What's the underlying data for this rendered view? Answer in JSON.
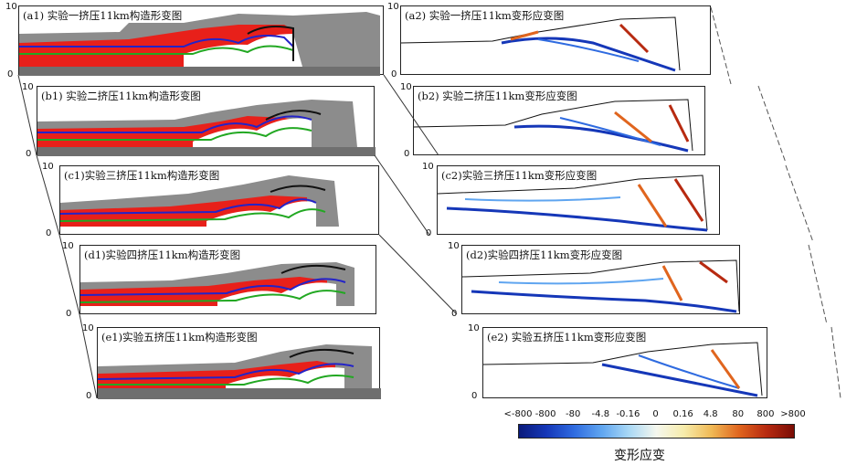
{
  "panels_left": [
    {
      "label": "(a1) 实验一挤压11km构造形变图"
    },
    {
      "label": "(b1) 实验二挤压11km构造形变图"
    },
    {
      "label": "(c1)实验三挤压11km构造形变图"
    },
    {
      "label": "(d1)实验四挤压11km构造形变图"
    },
    {
      "label": "(e1)实验五挤压11km构造形变图"
    }
  ],
  "panels_right": [
    {
      "label": "(a2) 实验一挤压11km变形应变图"
    },
    {
      "label": "(b2) 实验二挤压11km变形应变图"
    },
    {
      "label": "(c2)实验三挤压11km变形应变图"
    },
    {
      "label": "(d2)实验四挤压11km变形应变图"
    },
    {
      "label": "(e2) 实验五挤压11km变形应变图"
    }
  ],
  "axis": {
    "top": "10",
    "bottom": "0"
  },
  "colorbar": {
    "title": "变形应变",
    "labels": [
      "<-800",
      "-800",
      "-80",
      "-4.8",
      "-0.16",
      "0",
      "0.16",
      "4.8",
      "80",
      "800",
      ">800"
    ],
    "colors": [
      "#0a1a7a",
      "#1537b8",
      "#2f6be0",
      "#5fa5f0",
      "#a9d8f5",
      "#f5f7ee",
      "#f6ecab",
      "#f0b955",
      "#e0651e",
      "#b72a10",
      "#7a0d05"
    ]
  },
  "colors": {
    "layer_gray": "#8c8c8c",
    "layer_light_gray": "#b4b4b4",
    "layer_red": "#e8201a",
    "basement": "#6f6f6f",
    "line_blue": "#2323c8",
    "line_green": "#22a822",
    "line_black": "#111111"
  }
}
